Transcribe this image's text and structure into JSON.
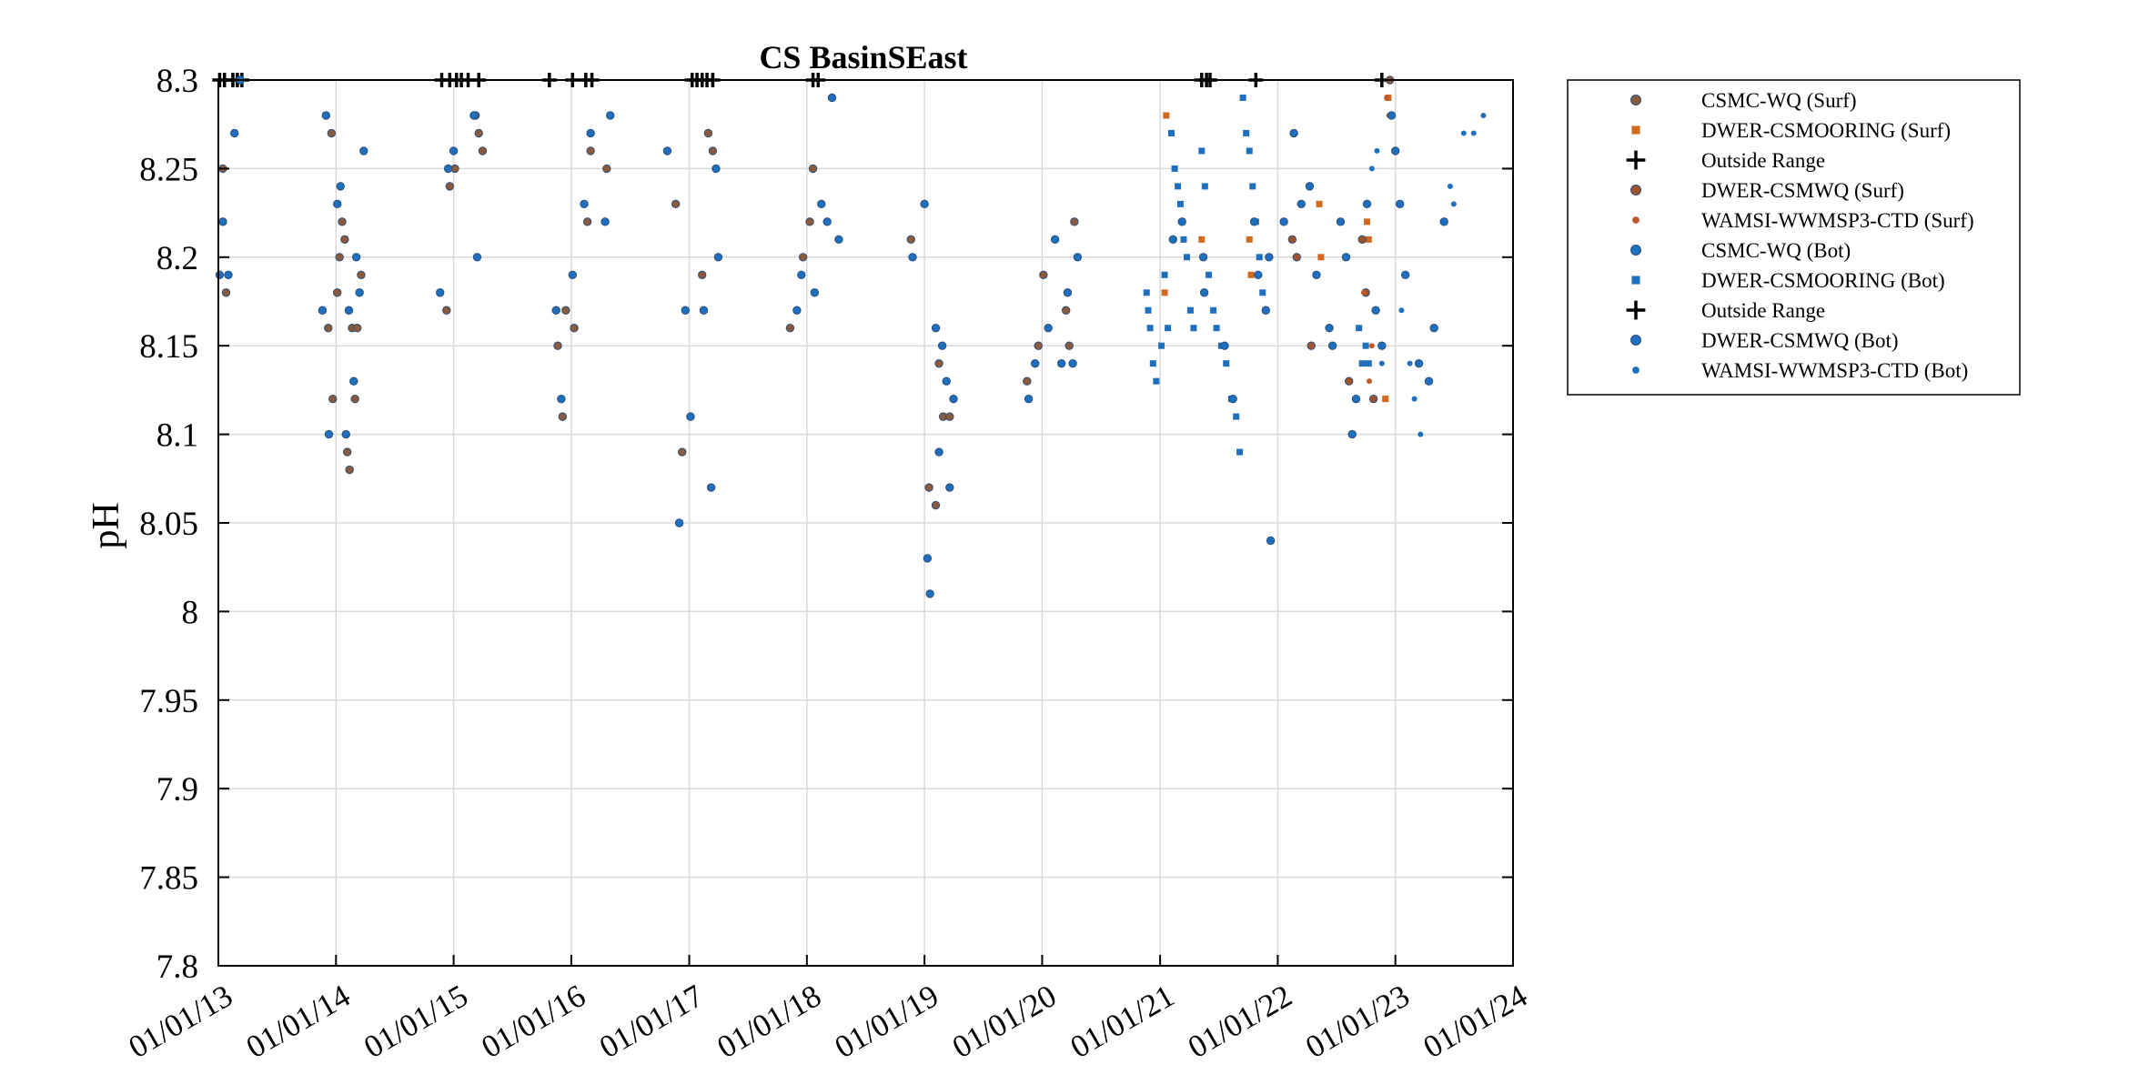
{
  "chart_data": {
    "type": "scatter",
    "title": "CS BasinSEast",
    "xlabel": "",
    "ylabel": "pH",
    "xlim": [
      "2013-01-01",
      "2024-01-01"
    ],
    "ylim": [
      7.8,
      8.3
    ],
    "x_ticks": [
      "01/01/13",
      "01/01/14",
      "01/01/15",
      "01/01/16",
      "01/01/17",
      "01/01/18",
      "01/01/19",
      "01/01/20",
      "01/01/21",
      "01/01/22",
      "01/01/23",
      "01/01/24"
    ],
    "y_ticks": [
      "7.8",
      "7.85",
      "7.9",
      "7.95",
      "8",
      "8.05",
      "8.1",
      "8.15",
      "8.2",
      "8.25",
      "8.3"
    ],
    "grid": true,
    "legend_position": "outside top-right",
    "series": [
      {
        "name": "CSMC-WQ (Surf)",
        "marker": "circle",
        "color": "#8B5A3C",
        "points": [
          [
            "2013-01-15",
            8.25
          ],
          [
            "2013-01-25",
            8.18
          ],
          [
            "2013-12-08",
            8.16
          ],
          [
            "2013-12-18",
            8.27
          ],
          [
            "2013-12-22",
            8.12
          ],
          [
            "2014-01-05",
            8.18
          ],
          [
            "2014-01-12",
            8.2
          ],
          [
            "2014-01-20",
            8.22
          ],
          [
            "2014-01-28",
            8.21
          ],
          [
            "2014-02-05",
            8.09
          ],
          [
            "2014-02-12",
            8.08
          ],
          [
            "2014-02-20",
            8.16
          ],
          [
            "2014-03-01",
            8.12
          ],
          [
            "2014-03-08",
            8.16
          ],
          [
            "2014-03-20",
            8.19
          ],
          [
            "2014-12-10",
            8.17
          ],
          [
            "2014-12-20",
            8.24
          ],
          [
            "2015-01-05",
            8.25
          ],
          [
            "2015-03-10",
            8.28
          ],
          [
            "2015-03-20",
            8.27
          ],
          [
            "2015-04-01",
            8.26
          ],
          [
            "2015-11-20",
            8.15
          ],
          [
            "2015-12-05",
            8.11
          ],
          [
            "2015-12-15",
            8.17
          ],
          [
            "2016-01-10",
            8.16
          ],
          [
            "2016-02-20",
            8.22
          ],
          [
            "2016-03-01",
            8.26
          ],
          [
            "2016-04-20",
            8.25
          ],
          [
            "2016-11-20",
            8.23
          ],
          [
            "2016-12-10",
            8.09
          ],
          [
            "2017-02-10",
            8.19
          ],
          [
            "2017-03-01",
            8.27
          ],
          [
            "2017-03-15",
            8.26
          ],
          [
            "2017-11-10",
            8.16
          ],
          [
            "2017-12-20",
            8.2
          ],
          [
            "2018-01-10",
            8.22
          ],
          [
            "2018-01-20",
            8.25
          ],
          [
            "2018-11-20",
            8.21
          ],
          [
            "2019-01-15",
            8.07
          ],
          [
            "2019-02-05",
            8.06
          ],
          [
            "2019-02-15",
            8.14
          ],
          [
            "2019-02-28",
            8.11
          ],
          [
            "2019-03-20",
            8.11
          ],
          [
            "2019-11-15",
            8.13
          ],
          [
            "2019-12-20",
            8.15
          ],
          [
            "2020-01-05",
            8.19
          ],
          [
            "2020-03-15",
            8.17
          ],
          [
            "2020-03-25",
            8.15
          ],
          [
            "2020-04-10",
            8.22
          ]
        ]
      },
      {
        "name": "DWER-CSMOORING (Surf)",
        "marker": "square",
        "color": "#D2691E",
        "points": [
          [
            "2021-01-15",
            8.18
          ],
          [
            "2021-01-20",
            8.28
          ],
          [
            "2021-05-10",
            8.21
          ],
          [
            "2021-05-15",
            8.2
          ],
          [
            "2021-10-05",
            8.21
          ],
          [
            "2021-10-10",
            8.19
          ],
          [
            "2022-05-10",
            8.23
          ],
          [
            "2022-05-15",
            8.2
          ],
          [
            "2022-10-05",
            8.22
          ],
          [
            "2022-10-10",
            8.21
          ],
          [
            "2022-11-20",
            8.15
          ],
          [
            "2022-12-01",
            8.12
          ],
          [
            "2022-12-10",
            8.29
          ]
        ]
      },
      {
        "name": "Outside Range",
        "marker": "plus",
        "color": "#000000",
        "points": [
          [
            "2013-01-05",
            8.3
          ],
          [
            "2013-02-15",
            8.3
          ],
          [
            "2013-03-01",
            8.3
          ],
          [
            "2013-03-15",
            8.3
          ],
          [
            "2014-11-25",
            8.3
          ],
          [
            "2014-12-20",
            8.3
          ],
          [
            "2015-01-10",
            8.3
          ],
          [
            "2015-02-15",
            8.3
          ],
          [
            "2015-03-20",
            8.3
          ],
          [
            "2015-10-25",
            8.3
          ],
          [
            "2016-02-15",
            8.3
          ],
          [
            "2016-03-05",
            8.3
          ],
          [
            "2017-01-10",
            8.3
          ],
          [
            "2017-01-25",
            8.3
          ],
          [
            "2017-02-10",
            8.3
          ],
          [
            "2017-02-25",
            8.3
          ],
          [
            "2017-03-15",
            8.3
          ],
          [
            "2018-02-05",
            8.3
          ],
          [
            "2021-05-10",
            8.3
          ],
          [
            "2021-05-25",
            8.3
          ],
          [
            "2021-06-05",
            8.3
          ],
          [
            "2021-10-25",
            8.3
          ],
          [
            "2022-11-20",
            8.3
          ]
        ]
      },
      {
        "name": "DWER-CSMWQ (Surf)",
        "marker": "circle",
        "color": "#A0522D",
        "points": [
          [
            "2022-02-15",
            8.21
          ],
          [
            "2022-03-01",
            8.2
          ],
          [
            "2022-04-15",
            8.15
          ],
          [
            "2022-08-10",
            8.13
          ],
          [
            "2022-09-20",
            8.21
          ],
          [
            "2022-10-01",
            8.18
          ],
          [
            "2022-10-25",
            8.12
          ],
          [
            "2022-12-15",
            8.3
          ]
        ]
      },
      {
        "name": "WAMSI-WWMSP3-CTD (Surf)",
        "marker": "dot",
        "color": "#C0592B",
        "points": [
          [
            "2022-09-25",
            8.18
          ],
          [
            "2022-10-05",
            8.14
          ],
          [
            "2022-10-12",
            8.13
          ],
          [
            "2022-10-20",
            8.15
          ],
          [
            "2022-12-05",
            8.29
          ],
          [
            "2022-12-12",
            8.28
          ]
        ]
      },
      {
        "name": "CSMC-WQ (Bot)",
        "marker": "circle",
        "color": "#1f6fbf",
        "points": [
          [
            "2013-01-05",
            8.19
          ],
          [
            "2013-01-15",
            8.22
          ],
          [
            "2013-02-01",
            8.19
          ],
          [
            "2013-02-20",
            8.27
          ],
          [
            "2013-03-10",
            8.3
          ],
          [
            "2013-11-20",
            8.17
          ],
          [
            "2013-12-01",
            8.28
          ],
          [
            "2013-12-10",
            8.1
          ],
          [
            "2014-01-05",
            8.23
          ],
          [
            "2014-01-15",
            8.24
          ],
          [
            "2014-02-01",
            8.1
          ],
          [
            "2014-02-10",
            8.17
          ],
          [
            "2014-02-25",
            8.13
          ],
          [
            "2014-03-05",
            8.2
          ],
          [
            "2014-03-15",
            8.18
          ],
          [
            "2014-03-28",
            8.26
          ],
          [
            "2014-11-20",
            8.18
          ],
          [
            "2014-12-15",
            8.25
          ],
          [
            "2015-01-01",
            8.26
          ],
          [
            "2015-03-05",
            8.28
          ],
          [
            "2015-03-15",
            8.2
          ],
          [
            "2015-11-15",
            8.17
          ],
          [
            "2015-12-01",
            8.12
          ],
          [
            "2016-01-05",
            8.19
          ],
          [
            "2016-02-10",
            8.23
          ],
          [
            "2016-03-01",
            8.27
          ],
          [
            "2016-04-15",
            8.22
          ],
          [
            "2016-05-01",
            8.28
          ],
          [
            "2016-10-25",
            8.26
          ],
          [
            "2016-12-01",
            8.05
          ],
          [
            "2016-12-20",
            8.17
          ],
          [
            "2017-01-05",
            8.11
          ],
          [
            "2017-02-15",
            8.17
          ],
          [
            "2017-03-10",
            8.07
          ],
          [
            "2017-03-25",
            8.25
          ],
          [
            "2017-04-01",
            8.2
          ],
          [
            "2017-12-01",
            8.17
          ],
          [
            "2017-12-15",
            8.19
          ],
          [
            "2018-01-25",
            8.18
          ],
          [
            "2018-02-15",
            8.23
          ],
          [
            "2018-03-05",
            8.22
          ],
          [
            "2018-03-20",
            8.29
          ],
          [
            "2018-04-10",
            8.21
          ],
          [
            "2018-11-25",
            8.2
          ],
          [
            "2019-01-01",
            8.23
          ],
          [
            "2019-01-10",
            8.03
          ],
          [
            "2019-01-18",
            8.01
          ],
          [
            "2019-02-05",
            8.16
          ],
          [
            "2019-02-15",
            8.09
          ],
          [
            "2019-02-25",
            8.15
          ],
          [
            "2019-03-10",
            8.13
          ],
          [
            "2019-03-20",
            8.07
          ],
          [
            "2019-04-01",
            8.12
          ],
          [
            "2019-11-20",
            8.12
          ],
          [
            "2019-12-10",
            8.14
          ],
          [
            "2020-01-20",
            8.16
          ],
          [
            "2020-02-10",
            8.21
          ],
          [
            "2020-03-01",
            8.14
          ],
          [
            "2020-03-20",
            8.18
          ],
          [
            "2020-04-05",
            8.14
          ],
          [
            "2020-04-20",
            8.2
          ]
        ]
      },
      {
        "name": "DWER-CSMOORING (Bot)",
        "marker": "square",
        "color": "#1f6fbf",
        "points": [
          [
            "2020-11-20",
            8.18
          ],
          [
            "2020-11-25",
            8.17
          ],
          [
            "2020-12-01",
            8.16
          ],
          [
            "2020-12-10",
            8.14
          ],
          [
            "2020-12-20",
            8.13
          ],
          [
            "2021-01-05",
            8.15
          ],
          [
            "2021-01-15",
            8.19
          ],
          [
            "2021-01-25",
            8.16
          ],
          [
            "2021-02-05",
            8.27
          ],
          [
            "2021-02-15",
            8.25
          ],
          [
            "2021-02-25",
            8.24
          ],
          [
            "2021-03-05",
            8.23
          ],
          [
            "2021-03-15",
            8.21
          ],
          [
            "2021-03-25",
            8.2
          ],
          [
            "2021-04-05",
            8.17
          ],
          [
            "2021-04-15",
            8.16
          ],
          [
            "2021-05-10",
            8.26
          ],
          [
            "2021-05-20",
            8.24
          ],
          [
            "2021-06-01",
            8.19
          ],
          [
            "2021-06-15",
            8.17
          ],
          [
            "2021-06-25",
            8.16
          ],
          [
            "2021-07-10",
            8.15
          ],
          [
            "2021-07-25",
            8.14
          ],
          [
            "2021-08-10",
            8.12
          ],
          [
            "2021-08-25",
            8.11
          ],
          [
            "2021-09-05",
            8.09
          ],
          [
            "2021-09-15",
            8.29
          ],
          [
            "2021-09-25",
            8.27
          ],
          [
            "2021-10-05",
            8.26
          ],
          [
            "2021-10-15",
            8.24
          ],
          [
            "2021-10-25",
            8.22
          ],
          [
            "2021-11-05",
            8.2
          ],
          [
            "2021-11-15",
            8.18
          ],
          [
            "2021-11-25",
            8.17
          ],
          [
            "2022-09-10",
            8.16
          ],
          [
            "2022-09-20",
            8.14
          ],
          [
            "2022-10-01",
            8.15
          ],
          [
            "2022-10-10",
            8.14
          ]
        ]
      },
      {
        "name": "Outside Range",
        "marker": "plus",
        "color": "#000000",
        "points": [
          [
            "2013-01-20",
            8.3
          ],
          [
            "2015-01-25",
            8.3
          ],
          [
            "2016-01-05",
            8.3
          ],
          [
            "2018-01-20",
            8.3
          ]
        ]
      },
      {
        "name": "DWER-CSMWQ (Bot)",
        "marker": "circle",
        "color": "#1f6fbf",
        "points": [
          [
            "2021-02-10",
            8.21
          ],
          [
            "2021-03-10",
            8.22
          ],
          [
            "2021-05-15",
            8.2
          ],
          [
            "2021-05-18",
            8.18
          ],
          [
            "2021-07-20",
            8.15
          ],
          [
            "2021-08-15",
            8.12
          ],
          [
            "2021-10-20",
            8.22
          ],
          [
            "2021-11-01",
            8.19
          ],
          [
            "2021-11-25",
            8.17
          ],
          [
            "2021-12-05",
            8.2
          ],
          [
            "2021-12-10",
            8.04
          ],
          [
            "2022-01-20",
            8.22
          ],
          [
            "2022-02-20",
            8.27
          ],
          [
            "2022-03-15",
            8.23
          ],
          [
            "2022-04-10",
            8.24
          ],
          [
            "2022-05-01",
            8.19
          ],
          [
            "2022-06-10",
            8.16
          ],
          [
            "2022-06-20",
            8.15
          ],
          [
            "2022-07-15",
            8.22
          ],
          [
            "2022-08-01",
            8.2
          ],
          [
            "2022-08-20",
            8.1
          ],
          [
            "2022-09-01",
            8.12
          ],
          [
            "2022-10-05",
            8.23
          ],
          [
            "2022-11-01",
            8.17
          ],
          [
            "2022-11-20",
            8.15
          ],
          [
            "2022-12-20",
            8.28
          ],
          [
            "2023-01-01",
            8.26
          ],
          [
            "2023-01-15",
            8.23
          ],
          [
            "2023-02-01",
            8.19
          ],
          [
            "2023-03-15",
            8.14
          ],
          [
            "2023-04-15",
            8.13
          ],
          [
            "2023-05-01",
            8.16
          ],
          [
            "2023-06-01",
            8.22
          ]
        ]
      },
      {
        "name": "WAMSI-WWMSP3-CTD (Bot)",
        "marker": "dot",
        "color": "#1f6fbf",
        "points": [
          [
            "2022-10-20",
            8.25
          ],
          [
            "2022-11-05",
            8.26
          ],
          [
            "2022-11-20",
            8.14
          ],
          [
            "2023-01-20",
            8.17
          ],
          [
            "2023-02-15",
            8.14
          ],
          [
            "2023-03-01",
            8.12
          ],
          [
            "2023-03-20",
            8.1
          ],
          [
            "2023-06-20",
            8.24
          ],
          [
            "2023-07-01",
            8.23
          ],
          [
            "2023-08-01",
            8.27
          ],
          [
            "2023-09-01",
            8.27
          ],
          [
            "2023-10-01",
            8.28
          ]
        ]
      }
    ]
  }
}
